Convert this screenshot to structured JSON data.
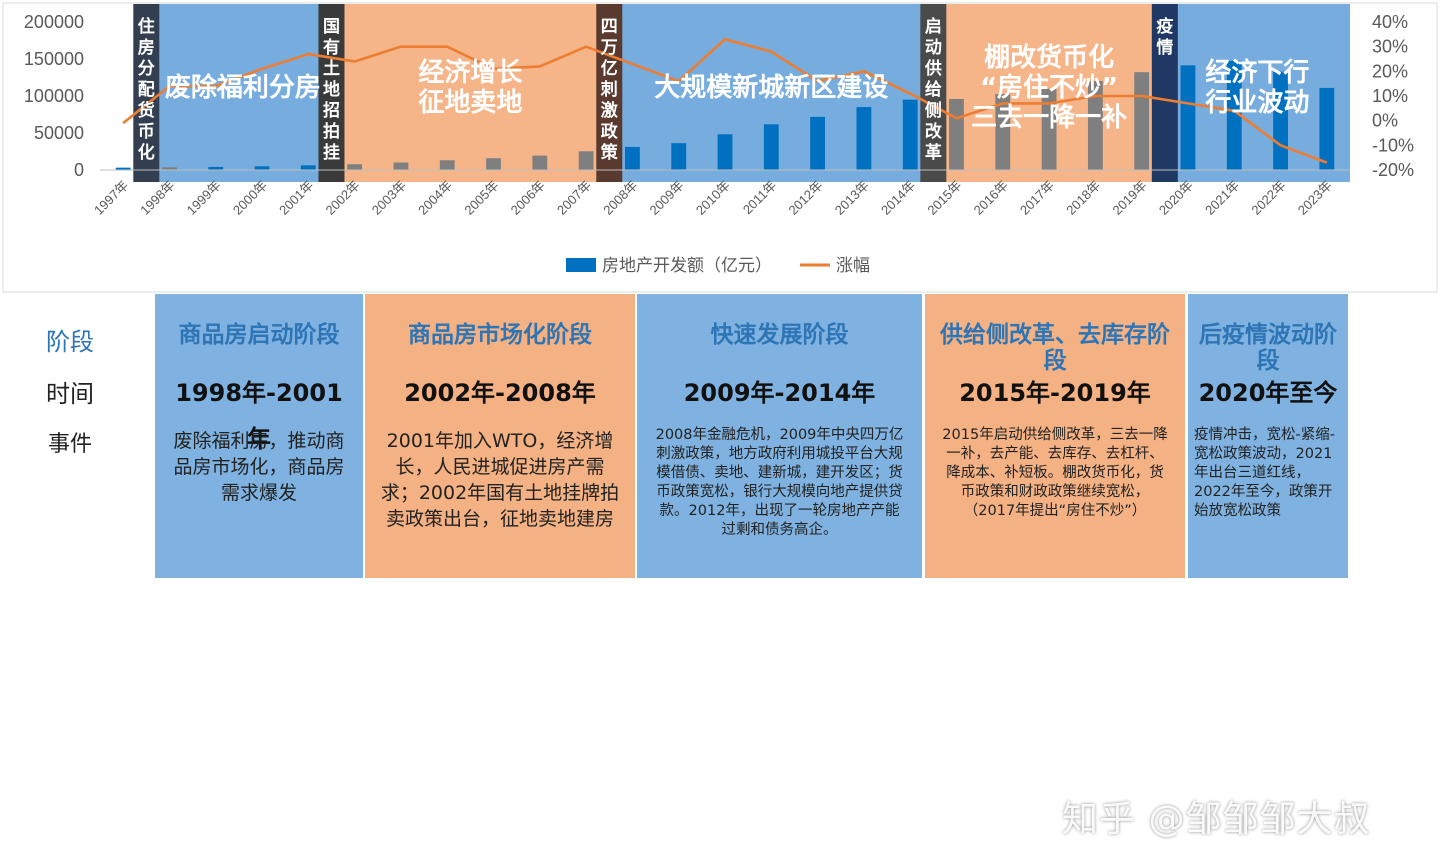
{
  "chart_data": {
    "type": "bar+line",
    "categories": [
      "1997年",
      "1998年",
      "1999年",
      "2000年",
      "2001年",
      "2002年",
      "2003年",
      "2004年",
      "2005年",
      "2006年",
      "2007年",
      "2008年",
      "2009年",
      "2010年",
      "2011年",
      "2012年",
      "2013年",
      "2014年",
      "2015年",
      "2016年",
      "2017年",
      "2018年",
      "2019年",
      "2020年",
      "2021年",
      "2022年",
      "2023年"
    ],
    "series": [
      {
        "name": "房地产开发额（亿元）",
        "type": "bar",
        "axis": "left",
        "color": "#0070C0",
        "values": [
          3178,
          3614,
          4103,
          4984,
          6344,
          7791,
          10154,
          13158,
          15909,
          19423,
          25289,
          31203,
          36242,
          48259,
          61797,
          71804,
          85013,
          95036,
          95979,
          102581,
          109799,
          120264,
          132194,
          141443,
          147602,
          132895,
          110913
        ]
      },
      {
        "name": "涨幅",
        "type": "line",
        "axis": "right",
        "color": "#ED7D31",
        "values": [
          -0.01,
          0.14,
          0.14,
          0.21,
          0.27,
          0.24,
          0.3,
          0.3,
          0.21,
          0.22,
          0.3,
          0.23,
          0.16,
          0.33,
          0.28,
          0.16,
          0.2,
          0.11,
          0.01,
          0.07,
          0.07,
          0.1,
          0.1,
          0.07,
          0.04,
          -0.1,
          -0.17
        ]
      }
    ],
    "yleft": {
      "ticks": [
        "0",
        "50000",
        "100000",
        "150000",
        "200000"
      ],
      "range": [
        0,
        200000
      ]
    },
    "yright": {
      "ticks": [
        "-20%",
        "-10%",
        "0%",
        "10%",
        "20%",
        "30%",
        "40%"
      ],
      "range": [
        -0.2,
        0.4
      ]
    },
    "legend": "bottom",
    "grid": false,
    "period_bands": [
      {
        "from": 1,
        "to": 5,
        "color": "#6FA8DC",
        "label": [
          "废除福利分房"
        ]
      },
      {
        "from": 5,
        "to": 11,
        "color": "#F4B183",
        "label": [
          "经济增长",
          "征地卖地"
        ]
      },
      {
        "from": 11,
        "to": 18,
        "color": "#6FA8DC",
        "label": [
          "大规模新城新区建设"
        ]
      },
      {
        "from": 18,
        "to": 23,
        "color": "#F4B183",
        "label": [
          "棚改货币化",
          "“房住不炒”",
          "三去一降一补"
        ]
      },
      {
        "from": 23,
        "to": 27,
        "color": "#6FA8DC",
        "label": [
          "经济下行",
          "行业波动"
        ]
      }
    ],
    "policy_markers": [
      {
        "at": 1,
        "color": "#333F50",
        "text": "住房分配货币化"
      },
      {
        "at": 5,
        "color": "#3A3A3A",
        "text": "国有土地招拍挂"
      },
      {
        "at": 11,
        "color": "#5A3A2E",
        "text": "四万亿刺激政策"
      },
      {
        "at": 18,
        "color": "#4A4A4A",
        "text": "启动供给侧改革"
      },
      {
        "at": 23,
        "color": "#1F3864",
        "text": "疫情"
      }
    ]
  },
  "table": {
    "row_labels": [
      "阶段",
      "时间",
      "事件"
    ],
    "columns": [
      {
        "stage": "商品房启动阶段",
        "time": "1998年-2001年",
        "events": "废除福利房，推动商品房市场化，商品房需求爆发",
        "bg": "#7FB2E0"
      },
      {
        "stage": "商品房市场化阶段",
        "time": "2002年-2008年",
        "events": "2001年加入WTO，经济增长，人民进城促进房产需求；2002年国有土地挂牌拍卖政策出台，征地卖地建房",
        "bg": "#F4B183"
      },
      {
        "stage": "快速发展阶段",
        "time": "2009年-2014年",
        "events": "2008年金融危机，2009年中央四万亿刺激政策，地方政府利用城投平台大规模借债、卖地、建新城，建开发区；货币政策宽松，银行大规模向地产提供贷款。2012年，出现了一轮房地产产能过剩和债务高企。",
        "bg": "#7FB2E0"
      },
      {
        "stage": "供给侧改革、去库存阶段",
        "time": "2015年-2019年",
        "events": "2015年启动供给侧改革，三去一降一补，去产能、去库存、去杠杆、降成本、补短板。棚改货币化，货币政策和财政政策继续宽松，（2017年提出“房住不炒”）",
        "bg": "#F4B183"
      },
      {
        "stage": "后疫情波动阶段",
        "time": "2020年至今",
        "events": "疫情冲击，宽松-紧缩-宽松政策波动，2021年出台三道红线，2022年至今，政策开始放宽松政策",
        "bg": "#7FB2E0"
      }
    ]
  },
  "watermark": "知乎 @邹邹邹大叔"
}
